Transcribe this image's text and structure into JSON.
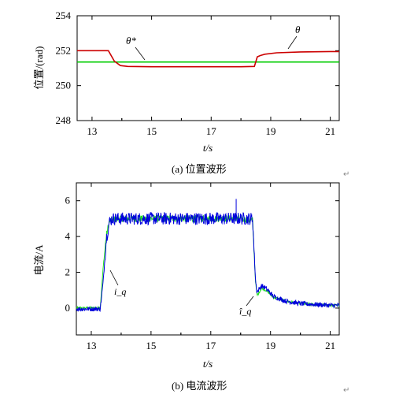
{
  "chart_data": [
    {
      "type": "line",
      "ylabel": "位置/(rad)",
      "xlabel": "t/s",
      "caption": "(a)  位置波形",
      "xlim": [
        12.5,
        21.3
      ],
      "ylim": [
        248,
        254
      ],
      "xticks": [
        "13",
        "15",
        "17",
        "19",
        "21"
      ],
      "yticks": [
        "248",
        "250",
        "252",
        "254"
      ],
      "grid": false,
      "series": [
        {
          "name": "θ",
          "color": "#cc0000",
          "x": [
            12.5,
            13.55,
            13.75,
            13.95,
            14.2,
            15,
            16,
            17,
            18,
            18.45,
            18.55,
            18.65,
            18.8,
            19.2,
            20,
            21,
            21.3
          ],
          "y": [
            252.0,
            252.0,
            251.4,
            251.15,
            251.1,
            251.08,
            251.08,
            251.08,
            251.08,
            251.1,
            251.65,
            251.72,
            251.8,
            251.88,
            251.93,
            251.95,
            251.95
          ]
        },
        {
          "name": "θ*",
          "color": "#00cc00",
          "x": [
            12.5,
            21.3
          ],
          "y": [
            251.35,
            251.35
          ]
        }
      ],
      "annotations": [
        "θ*",
        "θ"
      ]
    },
    {
      "type": "line",
      "ylabel": "电流/A",
      "xlabel": "t/s",
      "caption": "(b)  电流波形",
      "xlim": [
        12.5,
        21.3
      ],
      "ylim": [
        -1.5,
        7
      ],
      "xticks": [
        "13",
        "15",
        "17",
        "19",
        "21"
      ],
      "yticks": [
        "0",
        "2",
        "4",
        "6"
      ],
      "grid": false,
      "series": [
        {
          "name": "i_q",
          "color": "#0000dd",
          "x": [
            12.5,
            13.3,
            13.4,
            13.5,
            13.6,
            13.7,
            14,
            15,
            16,
            17,
            17.9,
            18.4,
            18.5,
            18.55,
            18.7,
            18.85,
            19.1,
            19.5,
            20,
            21,
            21.3
          ],
          "y": [
            -0.05,
            -0.05,
            1.5,
            3.8,
            4.8,
            5.0,
            5.0,
            5.0,
            5.0,
            5.0,
            5.0,
            5.0,
            1.5,
            0.9,
            1.25,
            1.1,
            0.65,
            0.4,
            0.25,
            0.15,
            0.15
          ],
          "noise": 0.22
        },
        {
          "name": "î_q",
          "color": "#22dd22",
          "x": [
            12.5,
            13.3,
            13.4,
            13.5,
            13.6,
            13.7,
            14,
            15,
            16,
            17,
            17.9,
            18.4,
            18.5,
            18.55,
            18.7,
            18.85,
            19.1,
            19.5,
            20,
            21,
            21.3
          ],
          "y": [
            0.0,
            0.0,
            2.3,
            4.0,
            4.8,
            4.95,
            5.0,
            5.0,
            5.0,
            5.0,
            5.0,
            4.9,
            1.4,
            0.7,
            1.1,
            1.0,
            0.6,
            0.4,
            0.25,
            0.15,
            0.15
          ],
          "noise": 0.12
        }
      ],
      "annotations": [
        "i_q",
        "î_q"
      ],
      "spike": {
        "x": 17.85,
        "y": 6.1
      }
    }
  ],
  "page": {
    "return_mark": "↵"
  }
}
